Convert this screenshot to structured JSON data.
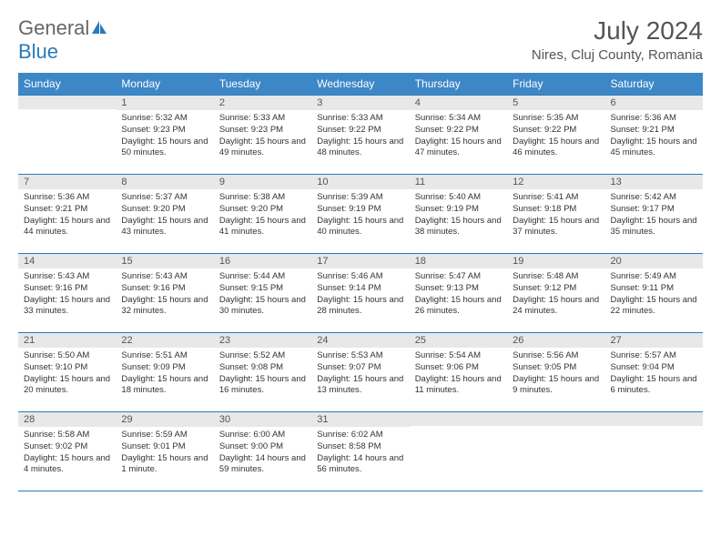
{
  "logo": {
    "general": "General",
    "blue": "Blue"
  },
  "title": {
    "month": "July 2024",
    "location": "Nires, Cluj County, Romania"
  },
  "dayNames": [
    "Sunday",
    "Monday",
    "Tuesday",
    "Wednesday",
    "Thursday",
    "Friday",
    "Saturday"
  ],
  "colors": {
    "headerBg": "#3d87c7",
    "border": "#2a7ab8",
    "dayNumBg": "#e8e8e8",
    "logoBlue": "#2a7ab8"
  },
  "weeks": [
    [
      {
        "num": "",
        "sunrise": "",
        "sunset": "",
        "daylight": ""
      },
      {
        "num": "1",
        "sunrise": "Sunrise: 5:32 AM",
        "sunset": "Sunset: 9:23 PM",
        "daylight": "Daylight: 15 hours and 50 minutes."
      },
      {
        "num": "2",
        "sunrise": "Sunrise: 5:33 AM",
        "sunset": "Sunset: 9:23 PM",
        "daylight": "Daylight: 15 hours and 49 minutes."
      },
      {
        "num": "3",
        "sunrise": "Sunrise: 5:33 AM",
        "sunset": "Sunset: 9:22 PM",
        "daylight": "Daylight: 15 hours and 48 minutes."
      },
      {
        "num": "4",
        "sunrise": "Sunrise: 5:34 AM",
        "sunset": "Sunset: 9:22 PM",
        "daylight": "Daylight: 15 hours and 47 minutes."
      },
      {
        "num": "5",
        "sunrise": "Sunrise: 5:35 AM",
        "sunset": "Sunset: 9:22 PM",
        "daylight": "Daylight: 15 hours and 46 minutes."
      },
      {
        "num": "6",
        "sunrise": "Sunrise: 5:36 AM",
        "sunset": "Sunset: 9:21 PM",
        "daylight": "Daylight: 15 hours and 45 minutes."
      }
    ],
    [
      {
        "num": "7",
        "sunrise": "Sunrise: 5:36 AM",
        "sunset": "Sunset: 9:21 PM",
        "daylight": "Daylight: 15 hours and 44 minutes."
      },
      {
        "num": "8",
        "sunrise": "Sunrise: 5:37 AM",
        "sunset": "Sunset: 9:20 PM",
        "daylight": "Daylight: 15 hours and 43 minutes."
      },
      {
        "num": "9",
        "sunrise": "Sunrise: 5:38 AM",
        "sunset": "Sunset: 9:20 PM",
        "daylight": "Daylight: 15 hours and 41 minutes."
      },
      {
        "num": "10",
        "sunrise": "Sunrise: 5:39 AM",
        "sunset": "Sunset: 9:19 PM",
        "daylight": "Daylight: 15 hours and 40 minutes."
      },
      {
        "num": "11",
        "sunrise": "Sunrise: 5:40 AM",
        "sunset": "Sunset: 9:19 PM",
        "daylight": "Daylight: 15 hours and 38 minutes."
      },
      {
        "num": "12",
        "sunrise": "Sunrise: 5:41 AM",
        "sunset": "Sunset: 9:18 PM",
        "daylight": "Daylight: 15 hours and 37 minutes."
      },
      {
        "num": "13",
        "sunrise": "Sunrise: 5:42 AM",
        "sunset": "Sunset: 9:17 PM",
        "daylight": "Daylight: 15 hours and 35 minutes."
      }
    ],
    [
      {
        "num": "14",
        "sunrise": "Sunrise: 5:43 AM",
        "sunset": "Sunset: 9:16 PM",
        "daylight": "Daylight: 15 hours and 33 minutes."
      },
      {
        "num": "15",
        "sunrise": "Sunrise: 5:43 AM",
        "sunset": "Sunset: 9:16 PM",
        "daylight": "Daylight: 15 hours and 32 minutes."
      },
      {
        "num": "16",
        "sunrise": "Sunrise: 5:44 AM",
        "sunset": "Sunset: 9:15 PM",
        "daylight": "Daylight: 15 hours and 30 minutes."
      },
      {
        "num": "17",
        "sunrise": "Sunrise: 5:46 AM",
        "sunset": "Sunset: 9:14 PM",
        "daylight": "Daylight: 15 hours and 28 minutes."
      },
      {
        "num": "18",
        "sunrise": "Sunrise: 5:47 AM",
        "sunset": "Sunset: 9:13 PM",
        "daylight": "Daylight: 15 hours and 26 minutes."
      },
      {
        "num": "19",
        "sunrise": "Sunrise: 5:48 AM",
        "sunset": "Sunset: 9:12 PM",
        "daylight": "Daylight: 15 hours and 24 minutes."
      },
      {
        "num": "20",
        "sunrise": "Sunrise: 5:49 AM",
        "sunset": "Sunset: 9:11 PM",
        "daylight": "Daylight: 15 hours and 22 minutes."
      }
    ],
    [
      {
        "num": "21",
        "sunrise": "Sunrise: 5:50 AM",
        "sunset": "Sunset: 9:10 PM",
        "daylight": "Daylight: 15 hours and 20 minutes."
      },
      {
        "num": "22",
        "sunrise": "Sunrise: 5:51 AM",
        "sunset": "Sunset: 9:09 PM",
        "daylight": "Daylight: 15 hours and 18 minutes."
      },
      {
        "num": "23",
        "sunrise": "Sunrise: 5:52 AM",
        "sunset": "Sunset: 9:08 PM",
        "daylight": "Daylight: 15 hours and 16 minutes."
      },
      {
        "num": "24",
        "sunrise": "Sunrise: 5:53 AM",
        "sunset": "Sunset: 9:07 PM",
        "daylight": "Daylight: 15 hours and 13 minutes."
      },
      {
        "num": "25",
        "sunrise": "Sunrise: 5:54 AM",
        "sunset": "Sunset: 9:06 PM",
        "daylight": "Daylight: 15 hours and 11 minutes."
      },
      {
        "num": "26",
        "sunrise": "Sunrise: 5:56 AM",
        "sunset": "Sunset: 9:05 PM",
        "daylight": "Daylight: 15 hours and 9 minutes."
      },
      {
        "num": "27",
        "sunrise": "Sunrise: 5:57 AM",
        "sunset": "Sunset: 9:04 PM",
        "daylight": "Daylight: 15 hours and 6 minutes."
      }
    ],
    [
      {
        "num": "28",
        "sunrise": "Sunrise: 5:58 AM",
        "sunset": "Sunset: 9:02 PM",
        "daylight": "Daylight: 15 hours and 4 minutes."
      },
      {
        "num": "29",
        "sunrise": "Sunrise: 5:59 AM",
        "sunset": "Sunset: 9:01 PM",
        "daylight": "Daylight: 15 hours and 1 minute."
      },
      {
        "num": "30",
        "sunrise": "Sunrise: 6:00 AM",
        "sunset": "Sunset: 9:00 PM",
        "daylight": "Daylight: 14 hours and 59 minutes."
      },
      {
        "num": "31",
        "sunrise": "Sunrise: 6:02 AM",
        "sunset": "Sunset: 8:58 PM",
        "daylight": "Daylight: 14 hours and 56 minutes."
      },
      {
        "num": "",
        "sunrise": "",
        "sunset": "",
        "daylight": ""
      },
      {
        "num": "",
        "sunrise": "",
        "sunset": "",
        "daylight": ""
      },
      {
        "num": "",
        "sunrise": "",
        "sunset": "",
        "daylight": ""
      }
    ]
  ]
}
